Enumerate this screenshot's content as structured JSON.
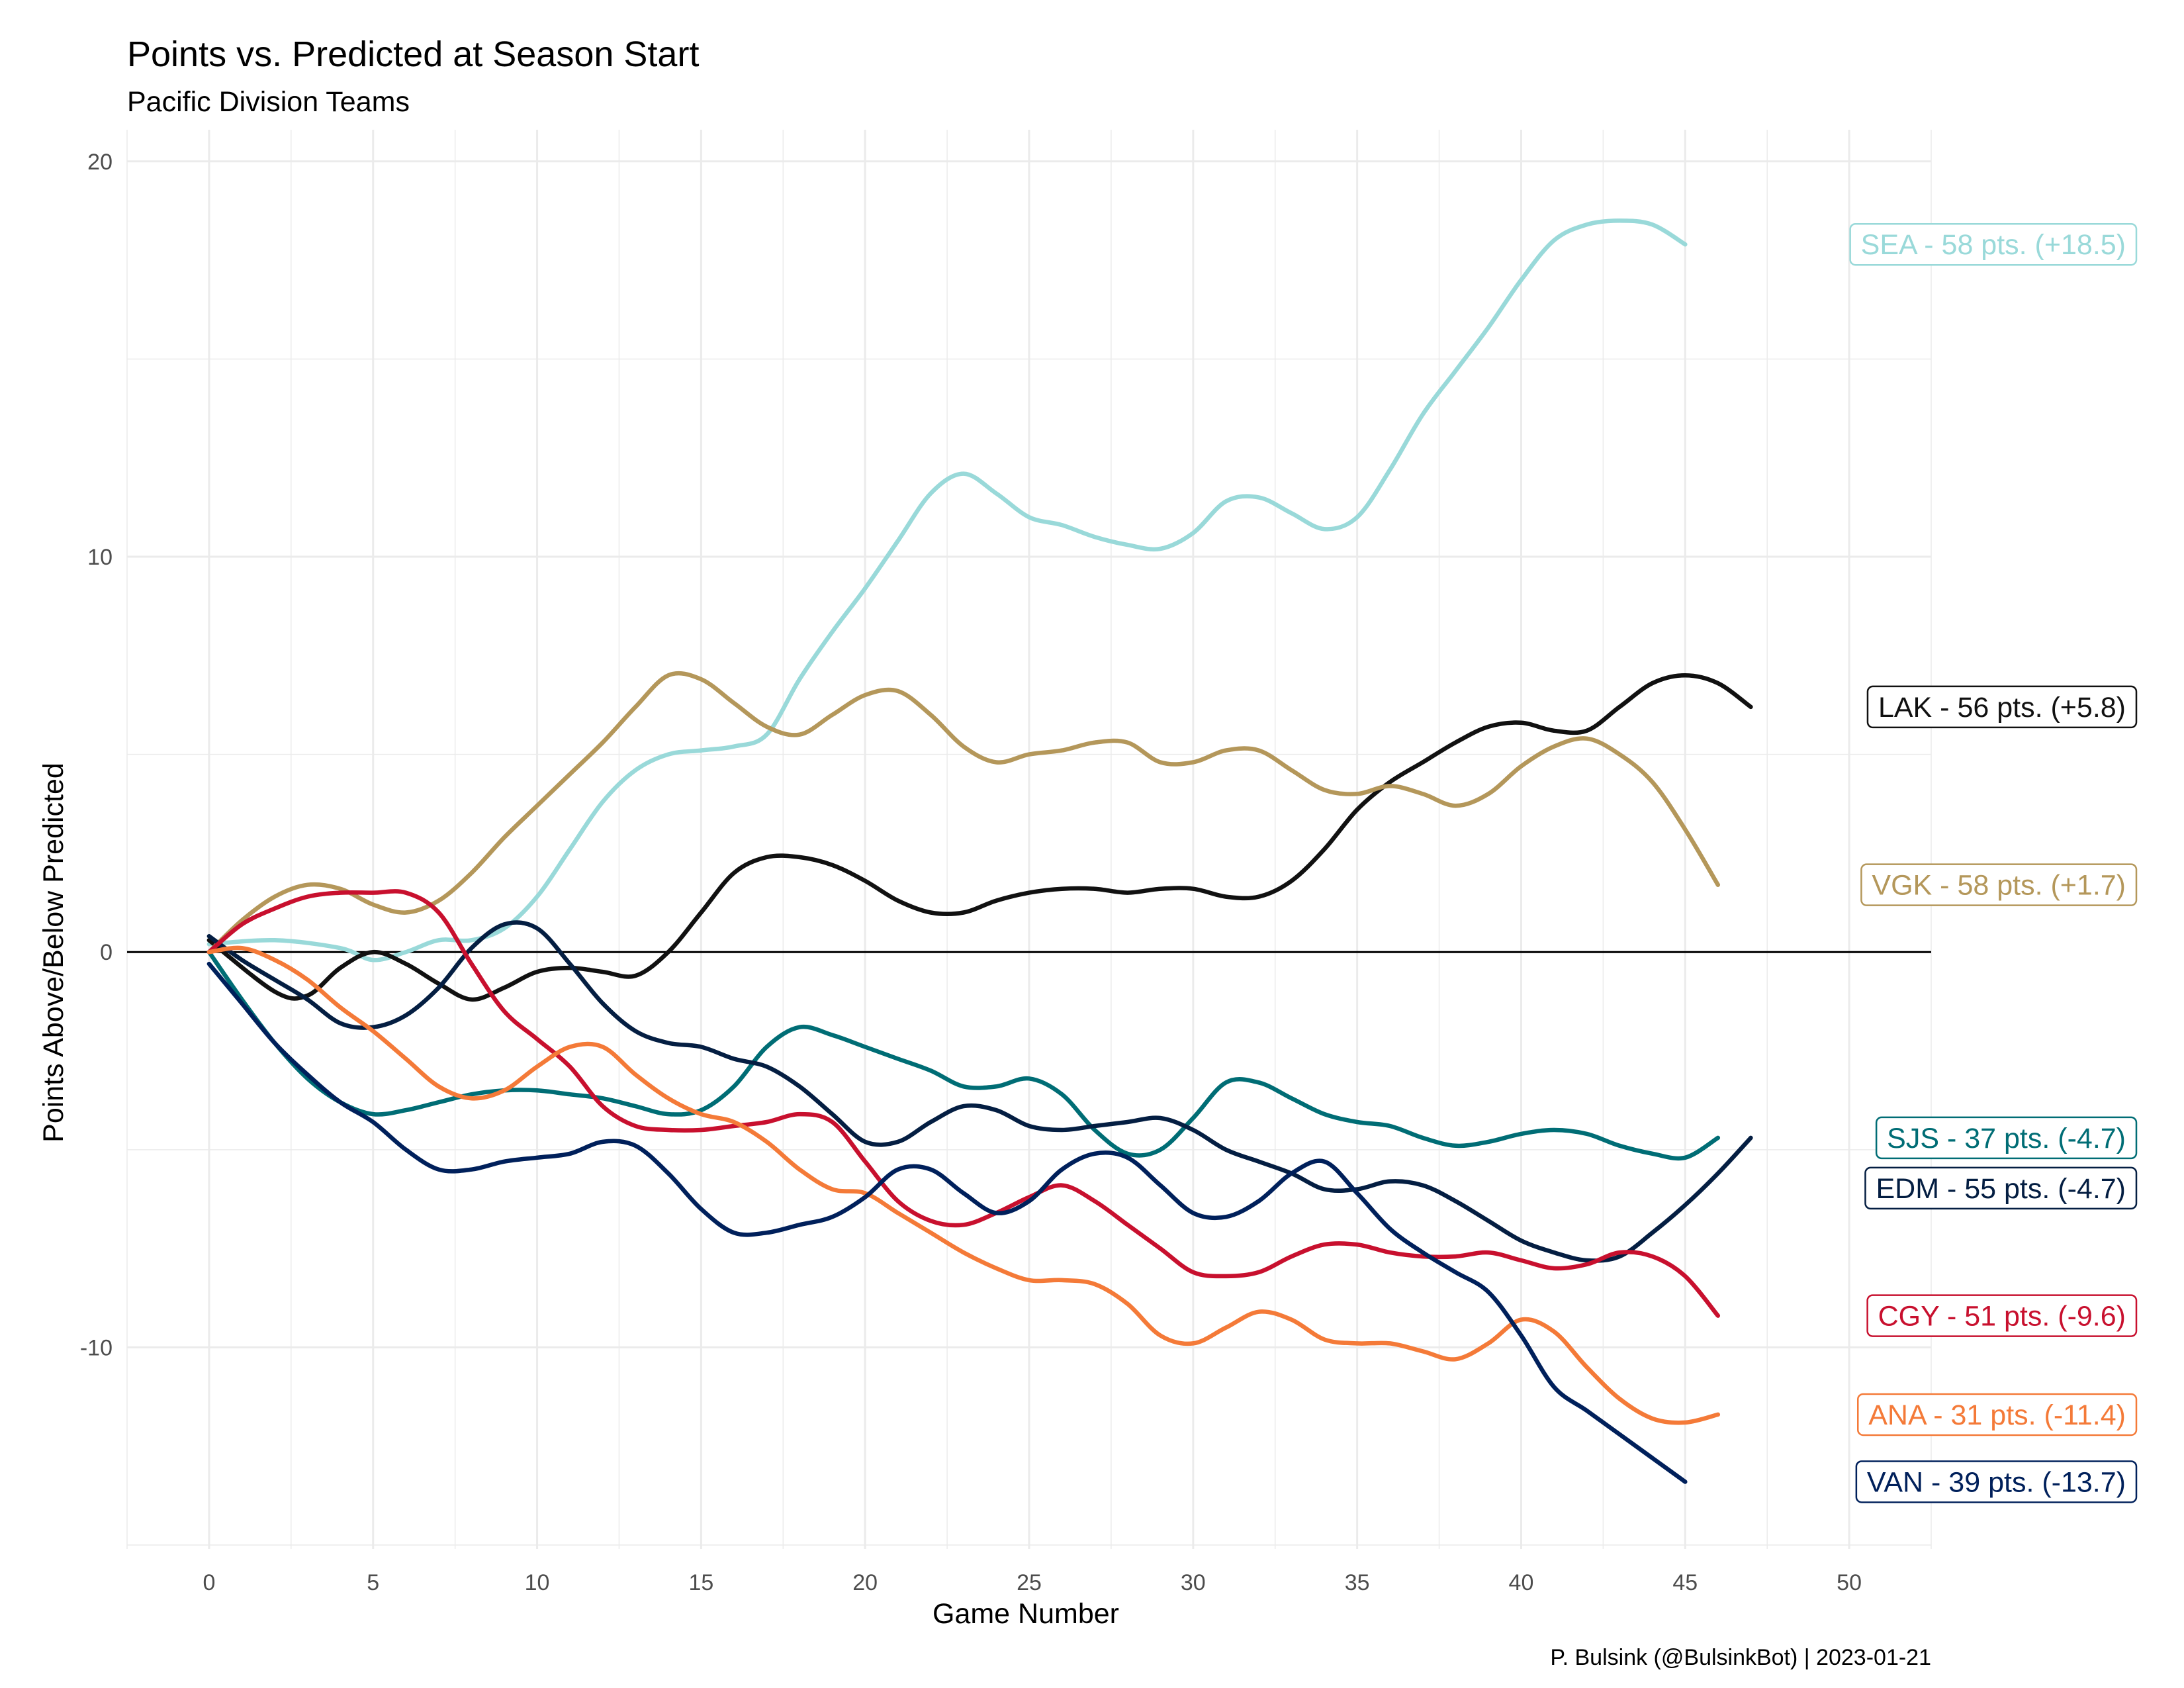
{
  "chart_data": {
    "type": "line",
    "title": "Points vs. Predicted at Season Start",
    "subtitle": "Pacific Division Teams",
    "xlabel": "Game Number",
    "ylabel": "Points Above/Below Predicted",
    "caption": "P. Bulsink (@BulsinkBot) | 2023-01-21",
    "xlim": [
      -2.5,
      52.5
    ],
    "ylim": [
      -15.1,
      20.8
    ],
    "x_ticks": [
      0,
      5,
      10,
      15,
      20,
      25,
      30,
      35,
      40,
      45,
      50
    ],
    "y_ticks": [
      -10,
      0,
      10,
      20
    ],
    "grid": true,
    "zero_line": true,
    "series": [
      {
        "name": "SEA",
        "label": "SEA - 58 pts. (+18.5)",
        "color": "#99D9D9",
        "x": [
          0,
          2,
          4,
          5,
          6,
          7,
          8,
          9,
          10,
          11,
          12,
          13,
          14,
          15,
          16,
          17,
          18,
          19,
          20,
          21,
          22,
          23,
          24,
          25,
          26,
          27,
          28,
          29,
          30,
          31,
          32,
          33,
          34,
          35,
          36,
          37,
          38,
          39,
          40,
          41,
          42,
          43,
          44,
          45
        ],
        "y": [
          0.2,
          0.3,
          0.1,
          -0.2,
          0.0,
          0.3,
          0.3,
          0.6,
          1.4,
          2.6,
          3.8,
          4.6,
          5.0,
          5.1,
          5.2,
          5.5,
          6.9,
          8.1,
          9.2,
          10.4,
          11.6,
          12.1,
          11.6,
          11.0,
          10.8,
          10.5,
          10.3,
          10.2,
          10.6,
          11.4,
          11.5,
          11.1,
          10.7,
          11.0,
          12.2,
          13.6,
          14.7,
          15.8,
          17.0,
          18.0,
          18.4,
          18.5,
          18.4,
          17.9
        ]
      },
      {
        "name": "LAK",
        "label": "LAK - 56 pts. (+5.8)",
        "color": "#111111",
        "x": [
          0,
          2,
          3,
          4,
          5,
          6,
          7,
          8,
          9,
          10,
          11,
          12,
          13,
          14,
          15,
          16,
          17,
          18,
          19,
          20,
          21,
          22,
          23,
          24,
          25,
          26,
          27,
          28,
          29,
          30,
          31,
          32,
          33,
          34,
          35,
          36,
          37,
          38,
          39,
          40,
          41,
          42,
          43,
          44,
          45,
          46,
          47
        ],
        "y": [
          0.3,
          -1.0,
          -1.1,
          -0.4,
          0.0,
          -0.3,
          -0.8,
          -1.2,
          -0.9,
          -0.5,
          -0.4,
          -0.5,
          -0.6,
          0.0,
          1.0,
          2.0,
          2.4,
          2.4,
          2.2,
          1.8,
          1.3,
          1.0,
          1.0,
          1.3,
          1.5,
          1.6,
          1.6,
          1.5,
          1.6,
          1.6,
          1.4,
          1.4,
          1.8,
          2.6,
          3.6,
          4.3,
          4.8,
          5.3,
          5.7,
          5.8,
          5.6,
          5.6,
          6.2,
          6.8,
          7.0,
          6.8,
          6.2
        ]
      },
      {
        "name": "VGK",
        "label": "VGK - 58 pts. (+1.7)",
        "color": "#B4975A",
        "x": [
          0,
          1,
          2,
          3,
          4,
          5,
          6,
          7,
          8,
          9,
          10,
          11,
          12,
          13,
          14,
          15,
          16,
          17,
          18,
          19,
          20,
          21,
          22,
          23,
          24,
          25,
          26,
          27,
          28,
          29,
          30,
          31,
          32,
          33,
          34,
          35,
          36,
          37,
          38,
          39,
          40,
          41,
          42,
          43,
          44,
          45,
          46
        ],
        "y": [
          0.0,
          0.8,
          1.4,
          1.7,
          1.6,
          1.2,
          1.0,
          1.3,
          2.0,
          2.9,
          3.7,
          4.5,
          5.3,
          6.2,
          7.0,
          6.9,
          6.3,
          5.7,
          5.5,
          6.0,
          6.5,
          6.6,
          6.0,
          5.2,
          4.8,
          5.0,
          5.1,
          5.3,
          5.3,
          4.8,
          4.8,
          5.1,
          5.1,
          4.6,
          4.1,
          4.0,
          4.2,
          4.0,
          3.7,
          4.0,
          4.7,
          5.2,
          5.4,
          5.0,
          4.3,
          3.1,
          1.7
        ]
      },
      {
        "name": "SJS",
        "label": "SJS - 37 pts. (-4.7)",
        "color": "#006D75",
        "x": [
          0,
          1,
          2,
          3,
          4,
          5,
          6,
          7,
          8,
          9,
          10,
          11,
          12,
          13,
          14,
          15,
          16,
          17,
          18,
          19,
          20,
          21,
          22,
          23,
          24,
          25,
          26,
          27,
          28,
          29,
          30,
          31,
          32,
          33,
          34,
          35,
          36,
          37,
          38,
          39,
          40,
          41,
          42,
          43,
          44,
          45,
          46
        ],
        "y": [
          0.0,
          -1.2,
          -2.3,
          -3.2,
          -3.8,
          -4.1,
          -4.0,
          -3.8,
          -3.6,
          -3.5,
          -3.5,
          -3.6,
          -3.7,
          -3.9,
          -4.1,
          -4.0,
          -3.4,
          -2.4,
          -1.9,
          -2.1,
          -2.4,
          -2.7,
          -3.0,
          -3.4,
          -3.4,
          -3.2,
          -3.6,
          -4.5,
          -5.1,
          -5.0,
          -4.2,
          -3.3,
          -3.3,
          -3.7,
          -4.1,
          -4.3,
          -4.4,
          -4.7,
          -4.9,
          -4.8,
          -4.6,
          -4.5,
          -4.6,
          -4.9,
          -5.1,
          -5.2,
          -4.7
        ]
      },
      {
        "name": "EDM",
        "label": "EDM - 55 pts. (-4.7)",
        "color": "#041E42",
        "x": [
          0,
          1,
          2,
          3,
          4,
          5,
          6,
          7,
          8,
          9,
          10,
          11,
          12,
          13,
          14,
          15,
          16,
          17,
          18,
          19,
          20,
          21,
          22,
          23,
          24,
          25,
          26,
          27,
          28,
          29,
          30,
          31,
          32,
          33,
          34,
          35,
          36,
          37,
          38,
          39,
          40,
          41,
          42,
          43,
          44,
          45,
          46,
          47
        ],
        "y": [
          0.4,
          -0.2,
          -0.7,
          -1.2,
          -1.8,
          -1.9,
          -1.6,
          -0.9,
          0.1,
          0.7,
          0.6,
          -0.3,
          -1.3,
          -2.0,
          -2.3,
          -2.4,
          -2.7,
          -2.9,
          -3.4,
          -4.1,
          -4.8,
          -4.8,
          -4.3,
          -3.9,
          -4.0,
          -4.4,
          -4.5,
          -4.4,
          -4.3,
          -4.2,
          -4.5,
          -5.0,
          -5.3,
          -5.6,
          -6.0,
          -6.0,
          -5.8,
          -5.9,
          -6.3,
          -6.8,
          -7.3,
          -7.6,
          -7.8,
          -7.7,
          -7.1,
          -6.4,
          -5.6,
          -4.7
        ]
      },
      {
        "name": "CGY",
        "label": "CGY - 51 pts. (-9.6)",
        "color": "#C8102E",
        "x": [
          0,
          1,
          2,
          3,
          4,
          5,
          6,
          7,
          8,
          9,
          10,
          11,
          12,
          13,
          14,
          15,
          16,
          17,
          18,
          19,
          20,
          21,
          22,
          23,
          24,
          25,
          26,
          27,
          28,
          29,
          30,
          31,
          32,
          33,
          34,
          35,
          36,
          37,
          38,
          39,
          40,
          41,
          42,
          43,
          44,
          45,
          46
        ],
        "y": [
          0.0,
          0.7,
          1.1,
          1.4,
          1.5,
          1.5,
          1.5,
          1.0,
          -0.3,
          -1.5,
          -2.2,
          -2.9,
          -3.9,
          -4.4,
          -4.5,
          -4.5,
          -4.4,
          -4.3,
          -4.1,
          -4.3,
          -5.3,
          -6.3,
          -6.8,
          -6.9,
          -6.6,
          -6.2,
          -5.9,
          -6.3,
          -6.9,
          -7.5,
          -8.1,
          -8.2,
          -8.1,
          -7.7,
          -7.4,
          -7.4,
          -7.6,
          -7.7,
          -7.7,
          -7.6,
          -7.8,
          -8.0,
          -7.9,
          -7.6,
          -7.7,
          -8.2,
          -9.2
        ]
      },
      {
        "name": "ANA",
        "label": "ANA - 31 pts. (-11.4)",
        "color": "#F47A38",
        "x": [
          0,
          1,
          2,
          3,
          4,
          5,
          6,
          7,
          8,
          9,
          10,
          11,
          12,
          13,
          14,
          15,
          16,
          17,
          18,
          19,
          20,
          21,
          22,
          23,
          24,
          25,
          26,
          27,
          28,
          29,
          30,
          31,
          32,
          33,
          34,
          35,
          36,
          37,
          38,
          39,
          40,
          41,
          42,
          43,
          44,
          45,
          46
        ],
        "y": [
          0.0,
          0.1,
          -0.2,
          -0.7,
          -1.4,
          -2.0,
          -2.7,
          -3.4,
          -3.7,
          -3.5,
          -2.9,
          -2.4,
          -2.4,
          -3.1,
          -3.7,
          -4.1,
          -4.3,
          -4.8,
          -5.5,
          -6.0,
          -6.1,
          -6.6,
          -7.1,
          -7.6,
          -8.0,
          -8.3,
          -8.3,
          -8.4,
          -8.9,
          -9.7,
          -9.9,
          -9.5,
          -9.1,
          -9.3,
          -9.8,
          -9.9,
          -9.9,
          -10.1,
          -10.3,
          -9.9,
          -9.3,
          -9.6,
          -10.5,
          -11.3,
          -11.8,
          -11.9,
          -11.7
        ]
      },
      {
        "name": "VAN",
        "label": "VAN - 39 pts. (-13.7)",
        "color": "#00205B",
        "x": [
          0,
          1,
          2,
          3,
          4,
          5,
          6,
          7,
          8,
          9,
          10,
          11,
          12,
          13,
          14,
          15,
          16,
          17,
          18,
          19,
          20,
          21,
          22,
          23,
          24,
          25,
          26,
          27,
          28,
          29,
          30,
          31,
          32,
          33,
          34,
          35,
          36,
          37,
          38,
          39,
          40,
          41,
          42,
          43,
          44,
          45
        ],
        "y": [
          -0.3,
          -1.3,
          -2.3,
          -3.1,
          -3.8,
          -4.3,
          -5.0,
          -5.5,
          -5.5,
          -5.3,
          -5.2,
          -5.1,
          -4.8,
          -4.9,
          -5.6,
          -6.5,
          -7.1,
          -7.1,
          -6.9,
          -6.7,
          -6.2,
          -5.5,
          -5.5,
          -6.1,
          -6.6,
          -6.3,
          -5.5,
          -5.1,
          -5.2,
          -5.9,
          -6.6,
          -6.7,
          -6.3,
          -5.6,
          -5.3,
          -6.1,
          -7.0,
          -7.6,
          -8.1,
          -8.6,
          -9.7,
          -11.0,
          -11.6,
          -12.2,
          -12.8,
          -13.4
        ]
      }
    ]
  }
}
